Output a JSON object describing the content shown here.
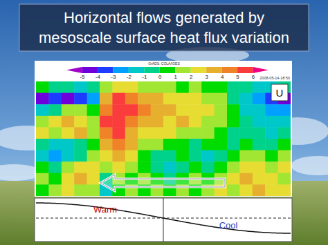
{
  "chart_data": {
    "type": "heatmap",
    "title": [
      "Horizontal flows generated by",
      "mesoscale surface heat flux variation"
    ],
    "panel_label": "U",
    "credit": "GrADS: COLA/IGES",
    "timestamp": "2008-05-14-18:50",
    "curve_labels": [
      "Warm",
      "Cool"
    ],
    "tick_labels": false,
    "colorbar_range": [
      -6,
      7
    ],
    "colorbar_ticks": [
      -5,
      -4,
      -3,
      -2,
      -1,
      0,
      1,
      2,
      3,
      4,
      5,
      6
    ],
    "cells": [
      [
        0,
        -1,
        -1,
        -2,
        -1,
        1,
        2,
        2,
        1,
        1,
        1,
        0,
        1,
        0,
        0,
        -1,
        -1,
        -2,
        -2,
        -1
      ],
      [
        -4.5,
        -4,
        -4.5,
        -4,
        -3,
        3,
        5,
        4,
        3,
        3,
        2,
        2,
        2,
        1,
        1,
        -1,
        -2,
        -3,
        -4,
        -4.5
      ],
      [
        -2,
        -1,
        1,
        1,
        0,
        4,
        5.5,
        5,
        4,
        3,
        3,
        2,
        2,
        2,
        1,
        0,
        -2,
        -2,
        -3,
        -3
      ],
      [
        1,
        2,
        3,
        2,
        1,
        5,
        5,
        4,
        3,
        3,
        2,
        3,
        2,
        1,
        1,
        0,
        -1,
        -2,
        -2,
        -2
      ],
      [
        2,
        1,
        2,
        3,
        1,
        4,
        5,
        3,
        2,
        2,
        2,
        1,
        1,
        1,
        0,
        -1,
        -1,
        -1,
        -2,
        -1
      ],
      [
        -1,
        -2,
        -2,
        -1,
        0,
        3,
        4,
        3,
        1,
        1,
        0,
        0,
        -1,
        0,
        0,
        -1,
        0,
        -1,
        -1,
        0
      ],
      [
        -2,
        -3,
        -2,
        -1,
        1,
        2,
        3,
        2,
        0,
        -1,
        -1,
        0,
        -1,
        -2,
        -1,
        0,
        1,
        1,
        0,
        1
      ],
      [
        0,
        -1,
        1,
        2,
        2,
        1,
        2,
        1,
        0,
        -1,
        -2,
        -1,
        0,
        -1,
        0,
        1,
        2,
        2,
        1,
        2
      ],
      [
        1,
        0,
        2,
        3,
        2,
        -1,
        1,
        0,
        1,
        0,
        -1,
        0,
        1,
        0,
        1,
        2,
        3,
        2,
        2,
        1
      ],
      [
        0,
        1,
        2,
        1,
        1,
        -2,
        0,
        1,
        0,
        1,
        0,
        1,
        0,
        1,
        2,
        1,
        2,
        3,
        2,
        2
      ]
    ]
  }
}
